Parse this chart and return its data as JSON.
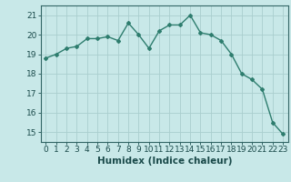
{
  "x": [
    0,
    1,
    2,
    3,
    4,
    5,
    6,
    7,
    8,
    9,
    10,
    11,
    12,
    13,
    14,
    15,
    16,
    17,
    18,
    19,
    20,
    21,
    22,
    23
  ],
  "y": [
    18.8,
    19.0,
    19.3,
    19.4,
    19.8,
    19.8,
    19.9,
    19.7,
    20.6,
    20.0,
    19.3,
    20.2,
    20.5,
    20.5,
    21.0,
    20.1,
    20.0,
    19.7,
    19.0,
    18.0,
    17.7,
    17.2,
    15.5,
    14.9
  ],
  "line_color": "#2e7d6e",
  "marker": "D",
  "marker_size": 2,
  "bg_color": "#c8e8e8",
  "grid_color": "#aacece",
  "xlabel": "Humidex (Indice chaleur)",
  "ylim": [
    14.5,
    21.5
  ],
  "xlim": [
    -0.5,
    23.5
  ],
  "yticks": [
    15,
    16,
    17,
    18,
    19,
    20,
    21
  ],
  "xticks": [
    0,
    1,
    2,
    3,
    4,
    5,
    6,
    7,
    8,
    9,
    10,
    11,
    12,
    13,
    14,
    15,
    16,
    17,
    18,
    19,
    20,
    21,
    22,
    23
  ],
  "font_size": 6.5,
  "xlabel_fontsize": 7.5,
  "linewidth": 1.0
}
